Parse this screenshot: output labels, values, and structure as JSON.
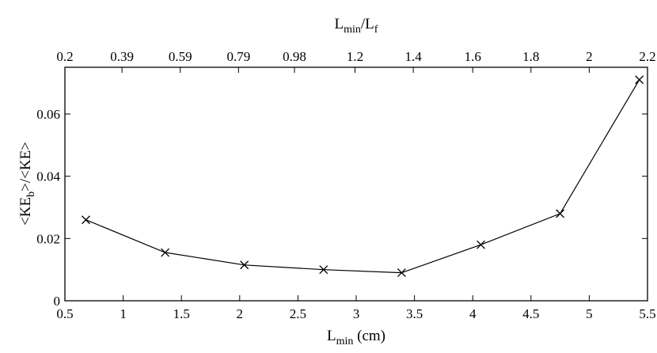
{
  "chart_data": {
    "type": "line",
    "xlabel": {
      "main": "L",
      "sub": "min",
      "suffix": " (cm)"
    },
    "ylabel": {
      "p1": "<KE",
      "sub": "b",
      "p2": ">/<KE>"
    },
    "x2label": {
      "a": "L",
      "a_sub": "min",
      "slash": "/L",
      "b_sub": "f"
    },
    "xlim": [
      0.5,
      5.5
    ],
    "ylim": [
      0,
      0.075
    ],
    "x_ticks": [
      0.5,
      1,
      1.5,
      2,
      2.5,
      3,
      3.5,
      4,
      4.5,
      5,
      5.5
    ],
    "x_tick_labels": [
      "0.5",
      "1",
      "1.5",
      "2",
      "2.5",
      "3",
      "3.5",
      "4",
      "4.5",
      "5",
      "5.5"
    ],
    "y_ticks": [
      0,
      0.02,
      0.04,
      0.06
    ],
    "y_tick_labels": [
      "0",
      "0.02",
      "0.04",
      "0.06"
    ],
    "x2_ticks": [
      0.5,
      0.99,
      1.49,
      1.99,
      2.47,
      2.99,
      3.49,
      4.0,
      4.5,
      5.0,
      5.5
    ],
    "x2_tick_labels": [
      "0.2",
      "0.39",
      "0.59",
      "0.79",
      "0.98",
      "1.2",
      "1.4",
      "1.6",
      "1.8",
      "2",
      "2.2"
    ],
    "grid": false,
    "marker": "x",
    "series": [
      {
        "x": [
          0.68,
          1.36,
          2.04,
          2.72,
          3.39,
          4.07,
          4.75,
          5.43
        ],
        "y": [
          0.026,
          0.0155,
          0.0115,
          0.01,
          0.009,
          0.018,
          0.028,
          0.071
        ]
      }
    ]
  }
}
